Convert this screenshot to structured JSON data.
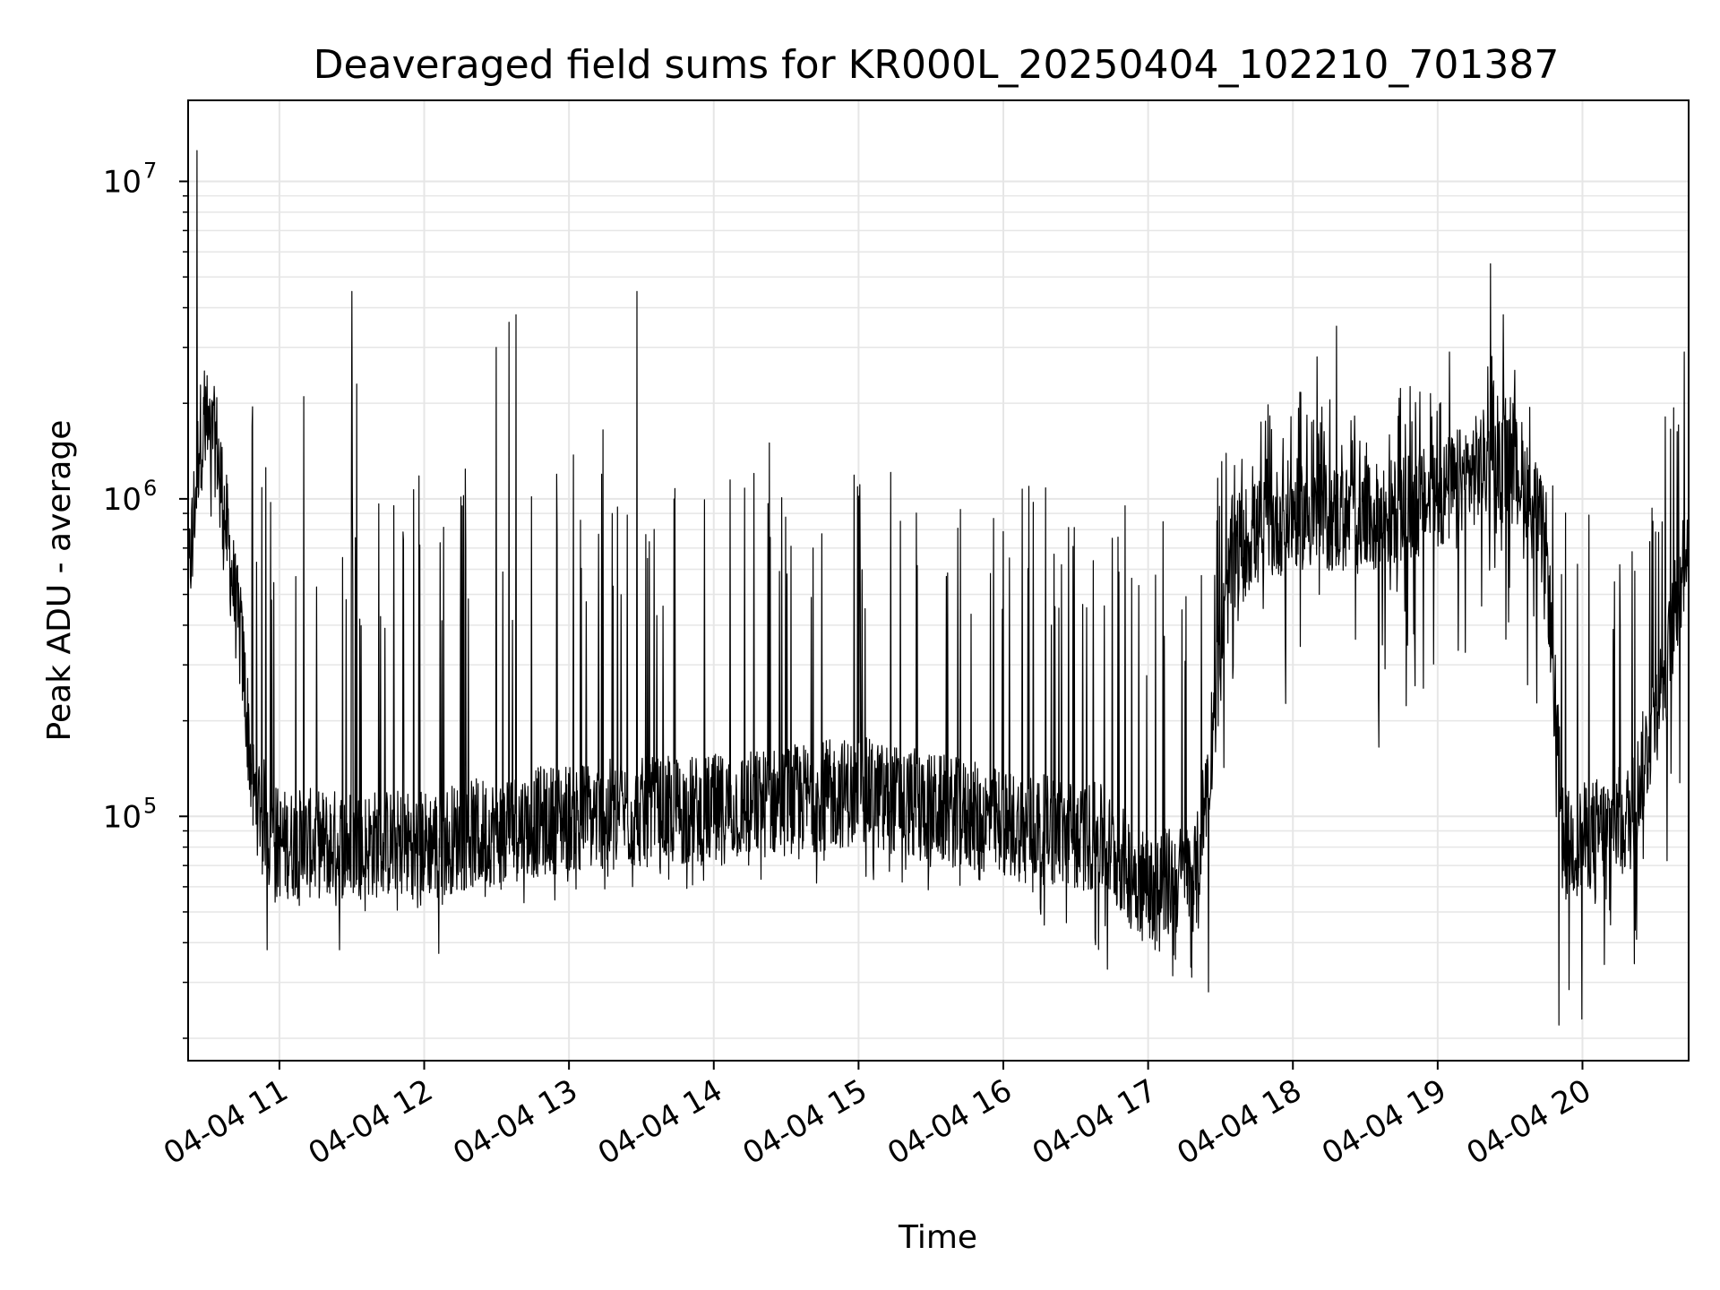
{
  "chart_data": {
    "type": "line",
    "title": "Deaveraged field sums for KR000L_20250404_102210_701387",
    "xlabel": "Time",
    "ylabel": "Peak ADU - average",
    "x_axis": {
      "scale": "time",
      "range": [
        "2025-04-04 10:22:10",
        "2025-04-04 20:44"
      ],
      "ticks": [
        {
          "value": "2025-04-04 11:00",
          "label": "04-04 11"
        },
        {
          "value": "2025-04-04 12:00",
          "label": "04-04 12"
        },
        {
          "value": "2025-04-04 13:00",
          "label": "04-04 13"
        },
        {
          "value": "2025-04-04 14:00",
          "label": "04-04 14"
        },
        {
          "value": "2025-04-04 15:00",
          "label": "04-04 15"
        },
        {
          "value": "2025-04-04 16:00",
          "label": "04-04 16"
        },
        {
          "value": "2025-04-04 17:00",
          "label": "04-04 17"
        },
        {
          "value": "2025-04-04 18:00",
          "label": "04-04 18"
        },
        {
          "value": "2025-04-04 19:00",
          "label": "04-04 19"
        },
        {
          "value": "2025-04-04 20:00",
          "label": "04-04 20"
        }
      ]
    },
    "y_axis": {
      "scale": "log",
      "range": [
        17000,
        18000000
      ],
      "ticks": [
        {
          "value": 100000,
          "base": "10",
          "exp": "5"
        },
        {
          "value": 1000000,
          "base": "10",
          "exp": "6"
        },
        {
          "value": 10000000,
          "base": "10",
          "exp": "7"
        }
      ]
    },
    "grid": true,
    "legend": "none",
    "line_color": "#000000",
    "grid_color": "#e6e6e6",
    "series": [
      {
        "envelope": [
          {
            "t": "2025-04-04 10:22",
            "base": 500000,
            "lo": 300000,
            "hi": 1000000
          },
          {
            "t": "2025-04-04 10:27",
            "base": 1600000,
            "lo": 1000000,
            "hi": 3200000
          },
          {
            "t": "2025-04-04 10:34",
            "base": 1500000,
            "lo": 700000,
            "hi": 2100000
          },
          {
            "t": "2025-04-04 10:40",
            "base": 600000,
            "lo": 450000,
            "hi": 900000
          },
          {
            "t": "2025-04-04 10:45",
            "base": 300000,
            "lo": 200000,
            "hi": 500000
          },
          {
            "t": "2025-04-04 10:49",
            "base": 120000,
            "lo": 70000,
            "hi": 1900000
          },
          {
            "t": "2025-04-04 11:00",
            "base": 82000,
            "lo": 50000,
            "hi": 1200000
          },
          {
            "t": "2025-04-04 12:00",
            "base": 82000,
            "lo": 50000,
            "hi": 1300000
          },
          {
            "t": "2025-04-04 13:00",
            "base": 100000,
            "lo": 55000,
            "hi": 1400000
          },
          {
            "t": "2025-04-04 14:00",
            "base": 105000,
            "lo": 60000,
            "hi": 1350000
          },
          {
            "t": "2025-04-04 15:00",
            "base": 120000,
            "lo": 60000,
            "hi": 1300000
          },
          {
            "t": "2025-04-04 16:00",
            "base": 95000,
            "lo": 55000,
            "hi": 1300000
          },
          {
            "t": "2025-04-04 16:40",
            "base": 85000,
            "lo": 35000,
            "hi": 1200000
          },
          {
            "t": "2025-04-04 17:00",
            "base": 60000,
            "lo": 30000,
            "hi": 950000
          },
          {
            "t": "2025-04-04 17:20",
            "base": 65000,
            "lo": 30000,
            "hi": 950000
          },
          {
            "t": "2025-04-04 17:35",
            "base": 700000,
            "lo": 200000,
            "hi": 1700000
          },
          {
            "t": "2025-04-04 18:00",
            "base": 900000,
            "lo": 150000,
            "hi": 2200000
          },
          {
            "t": "2025-04-04 18:30",
            "base": 850000,
            "lo": 150000,
            "hi": 2000000
          },
          {
            "t": "2025-04-04 19:00",
            "base": 1000000,
            "lo": 250000,
            "hi": 2500000
          },
          {
            "t": "2025-04-04 19:20",
            "base": 1300000,
            "lo": 400000,
            "hi": 3000000
          },
          {
            "t": "2025-04-04 19:35",
            "base": 1200000,
            "lo": 300000,
            "hi": 2500000
          },
          {
            "t": "2025-04-04 19:45",
            "base": 700000,
            "lo": 150000,
            "hi": 1200000
          },
          {
            "t": "2025-04-04 19:52",
            "base": 80000,
            "lo": 25000,
            "hi": 1000000
          },
          {
            "t": "2025-04-04 20:20",
            "base": 100000,
            "lo": 30000,
            "hi": 1000000
          },
          {
            "t": "2025-04-04 20:35",
            "base": 300000,
            "lo": 50000,
            "hi": 2000000
          },
          {
            "t": "2025-04-04 20:44",
            "base": 800000,
            "lo": 100000,
            "hi": 2800000
          }
        ],
        "peaks": [
          {
            "t": "2025-04-04 10:26",
            "value": 12500000
          },
          {
            "t": "2025-04-04 10:49",
            "value": 1950000
          },
          {
            "t": "2025-04-04 11:10",
            "value": 2100000
          },
          {
            "t": "2025-04-04 11:30",
            "value": 4500000
          },
          {
            "t": "2025-04-04 11:32",
            "value": 2300000
          },
          {
            "t": "2025-04-04 12:30",
            "value": 3000000
          },
          {
            "t": "2025-04-04 12:35",
            "value": 3600000
          },
          {
            "t": "2025-04-04 12:38",
            "value": 3800000
          },
          {
            "t": "2025-04-04 13:14",
            "value": 1650000
          },
          {
            "t": "2025-04-04 13:28",
            "value": 4500000
          },
          {
            "t": "2025-04-04 14:23",
            "value": 1500000
          },
          {
            "t": "2025-04-04 18:10",
            "value": 2800000
          },
          {
            "t": "2025-04-04 18:18",
            "value": 3500000
          },
          {
            "t": "2025-04-04 19:05",
            "value": 2900000
          },
          {
            "t": "2025-04-04 19:22",
            "value": 5500000
          },
          {
            "t": "2025-04-04 19:27",
            "value": 3800000
          },
          {
            "t": "2025-04-04 20:42",
            "value": 2900000
          }
        ],
        "troughs": [
          {
            "t": "2025-04-04 10:55",
            "value": 38000
          },
          {
            "t": "2025-04-04 11:25",
            "value": 38000
          },
          {
            "t": "2025-04-04 12:06",
            "value": 37000
          },
          {
            "t": "2025-04-04 16:43",
            "value": 33000
          },
          {
            "t": "2025-04-04 17:25",
            "value": 28000
          },
          {
            "t": "2025-04-04 19:50",
            "value": 22000
          },
          {
            "t": "2025-04-04 20:00",
            "value": 23000
          }
        ]
      }
    ]
  }
}
